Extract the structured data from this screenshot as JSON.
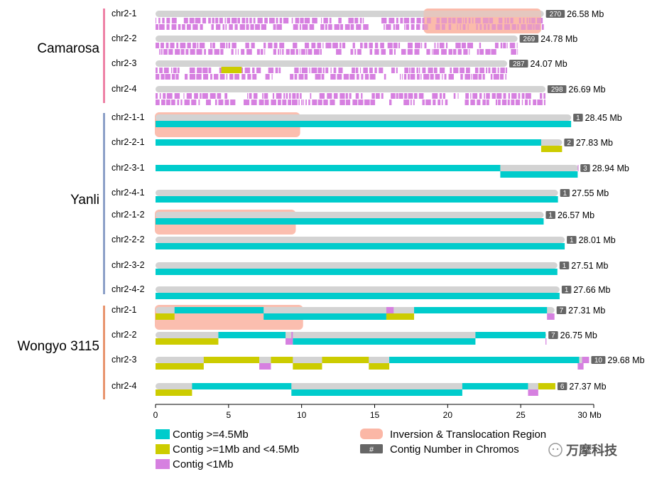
{
  "chart_data": {
    "type": "bar",
    "subtype": "chromosome-contig-ideogram",
    "title": "",
    "xlabel": "",
    "x_unit": "Mb",
    "xlim": [
      0,
      30
    ],
    "x_ticks": [
      0,
      5,
      10,
      15,
      20,
      25,
      30
    ],
    "x_tick_labels": [
      "0",
      "5",
      "10",
      "15",
      "20",
      "25",
      "30 Mb"
    ],
    "colors": {
      "large": "#00CCCC",
      "medium": "#CCCC00",
      "small": "#D680E0",
      "region": "#FBB7A6",
      "chrom": "#D3D3D3",
      "badge": "#666666",
      "Camarosa": "#EE82A6",
      "Yanli": "#8CA0C8",
      "Wongyo 3115": "#E8956F"
    },
    "legend": [
      {
        "key": "large",
        "label": "Contig >=4.5Mb"
      },
      {
        "key": "medium",
        "label": "Contig >=1Mb and <4.5Mb"
      },
      {
        "key": "small",
        "label": "Contig <1Mb"
      },
      {
        "key": "region",
        "label": "Inversion & Translocation Region"
      },
      {
        "key": "badge",
        "symbol": "#",
        "label": "Contig Number in Chromos"
      }
    ],
    "watermark": "万摩科技",
    "genomes": [
      {
        "name": "Camarosa",
        "chromosomes": [
          {
            "name": "chr2-1",
            "length": 26.58,
            "length_label": "26.58 Mb",
            "contigs_count": 270,
            "region": [
              18.4,
              26.4
            ],
            "pattern": "dense",
            "contigs": []
          },
          {
            "name": "chr2-2",
            "length": 24.78,
            "length_label": "24.78 Mb",
            "contigs_count": 269,
            "pattern": "dense",
            "contigs": []
          },
          {
            "name": "chr2-3",
            "length": 24.07,
            "length_label": "24.07 Mb",
            "contigs_count": 287,
            "pattern": "dense",
            "contigs": [
              {
                "s": 4.5,
                "e": 5.9,
                "t": "medium",
                "row": 1
              }
            ]
          },
          {
            "name": "chr2-4",
            "length": 26.69,
            "length_label": "26.69 Mb",
            "contigs_count": 298,
            "pattern": "dense",
            "contigs": []
          }
        ]
      },
      {
        "name": "Yanli",
        "chromosomes": [
          {
            "name": "chr2-1-1",
            "length": 28.45,
            "length_label": "28.45 Mb",
            "contigs_count": 1,
            "region": [
              0,
              9.9
            ],
            "contigs": [
              {
                "s": 0,
                "e": 28.45,
                "t": "large",
                "row": 1
              }
            ]
          },
          {
            "name": "chr2-2-1",
            "length": 27.83,
            "length_label": "27.83 Mb",
            "contigs_count": 2,
            "contigs": [
              {
                "s": 0,
                "e": 26.4,
                "t": "large",
                "row": 0
              },
              {
                "s": 26.4,
                "e": 27.83,
                "t": "medium",
                "row": 1
              }
            ]
          },
          {
            "name": "chr2-3-1",
            "length": 28.94,
            "length_label": "28.94 Mb",
            "contigs_count": 3,
            "contigs": [
              {
                "s": 0,
                "e": 23.6,
                "t": "large",
                "row": 0
              },
              {
                "s": 23.6,
                "e": 28.9,
                "t": "large",
                "row": 1
              },
              {
                "s": 28.9,
                "e": 28.94,
                "t": "small",
                "row": 0
              }
            ]
          },
          {
            "name": "chr2-4-1",
            "length": 27.55,
            "length_label": "27.55 Mb",
            "contigs_count": 1,
            "contigs": [
              {
                "s": 0,
                "e": 27.55,
                "t": "large",
                "row": 1
              }
            ]
          },
          {
            "name": "chr2-1-2",
            "length": 26.57,
            "length_label": "26.57 Mb",
            "contigs_count": 1,
            "region": [
              0,
              9.6
            ],
            "contigs": [
              {
                "s": 0,
                "e": 26.57,
                "t": "large",
                "row": 1
              }
            ]
          },
          {
            "name": "chr2-2-2",
            "length": 28.01,
            "length_label": "28.01 Mb",
            "contigs_count": 1,
            "contigs": [
              {
                "s": 0,
                "e": 28.01,
                "t": "large",
                "row": 1
              }
            ]
          },
          {
            "name": "chr2-3-2",
            "length": 27.51,
            "length_label": "27.51 Mb",
            "contigs_count": 1,
            "contigs": [
              {
                "s": 0,
                "e": 27.51,
                "t": "large",
                "row": 1
              }
            ]
          },
          {
            "name": "chr2-4-2",
            "length": 27.66,
            "length_label": "27.66 Mb",
            "contigs_count": 1,
            "contigs": [
              {
                "s": 0,
                "e": 27.66,
                "t": "large",
                "row": 1
              }
            ]
          }
        ]
      },
      {
        "name": "Wongyo 3115",
        "chromosomes": [
          {
            "name": "chr2-1",
            "length": 27.31,
            "length_label": "27.31 Mb",
            "contigs_count": 7,
            "region": [
              0,
              10.1
            ],
            "contigs": [
              {
                "s": 0,
                "e": 1.3,
                "t": "medium",
                "row": 1
              },
              {
                "s": 1.3,
                "e": 7.4,
                "t": "large",
                "row": 0
              },
              {
                "s": 7.4,
                "e": 15.8,
                "t": "large",
                "row": 1
              },
              {
                "s": 15.8,
                "e": 16.3,
                "t": "small",
                "row": 0
              },
              {
                "s": 15.8,
                "e": 17.7,
                "t": "medium",
                "row": 1
              },
              {
                "s": 17.7,
                "e": 26.8,
                "t": "large",
                "row": 0
              },
              {
                "s": 26.8,
                "e": 27.31,
                "t": "small",
                "row": 1
              }
            ]
          },
          {
            "name": "chr2-2",
            "length": 26.75,
            "length_label": "26.75 Mb",
            "contigs_count": 7,
            "contigs": [
              {
                "s": 0,
                "e": 4.3,
                "t": "medium",
                "row": 1
              },
              {
                "s": 4.3,
                "e": 8.9,
                "t": "large",
                "row": 0
              },
              {
                "s": 8.9,
                "e": 9.4,
                "t": "small",
                "row": 1
              },
              {
                "s": 9.3,
                "e": 9.4,
                "t": "small",
                "row": 0
              },
              {
                "s": 9.4,
                "e": 21.9,
                "t": "large",
                "row": 1
              },
              {
                "s": 21.9,
                "e": 26.7,
                "t": "large",
                "row": 0
              },
              {
                "s": 26.7,
                "e": 26.75,
                "t": "small",
                "row": 1
              }
            ]
          },
          {
            "name": "chr2-3",
            "length": 29.68,
            "length_label": "29.68 Mb",
            "contigs_count": 10,
            "contigs": [
              {
                "s": 0,
                "e": 3.3,
                "t": "medium",
                "row": 1
              },
              {
                "s": 3.3,
                "e": 7.1,
                "t": "medium",
                "row": 0
              },
              {
                "s": 7.1,
                "e": 7.9,
                "t": "small",
                "row": 1
              },
              {
                "s": 7.9,
                "e": 9.4,
                "t": "medium",
                "row": 0
              },
              {
                "s": 9.4,
                "e": 11.4,
                "t": "medium",
                "row": 1
              },
              {
                "s": 11.4,
                "e": 14.6,
                "t": "medium",
                "row": 0
              },
              {
                "s": 14.6,
                "e": 16.0,
                "t": "medium",
                "row": 1
              },
              {
                "s": 16.0,
                "e": 29.0,
                "t": "large",
                "row": 0
              },
              {
                "s": 28.9,
                "e": 29.3,
                "t": "small",
                "row": 1
              },
              {
                "s": 29.2,
                "e": 29.68,
                "t": "small",
                "row": 0
              }
            ]
          },
          {
            "name": "chr2-4",
            "length": 27.37,
            "length_label": "27.37 Mb",
            "contigs_count": 6,
            "contigs": [
              {
                "s": 0,
                "e": 2.5,
                "t": "medium",
                "row": 1
              },
              {
                "s": 2.5,
                "e": 9.3,
                "t": "large",
                "row": 0
              },
              {
                "s": 9.3,
                "e": 21.0,
                "t": "large",
                "row": 1
              },
              {
                "s": 21.0,
                "e": 25.5,
                "t": "large",
                "row": 0
              },
              {
                "s": 25.5,
                "e": 26.2,
                "t": "small",
                "row": 1
              },
              {
                "s": 26.2,
                "e": 27.37,
                "t": "medium",
                "row": 0
              }
            ]
          }
        ]
      }
    ]
  }
}
